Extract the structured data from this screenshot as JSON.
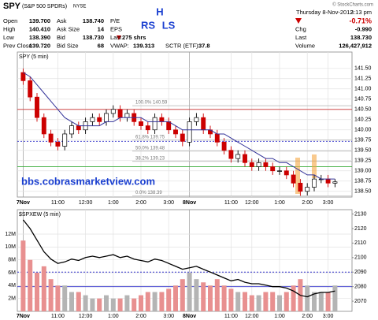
{
  "header": {
    "symbol": "SPY",
    "name": "(S&P 500 SPDRs)",
    "exchange": "NYSE",
    "credit": "© StockCharts.com",
    "date": "Thursday 8-Nov-2012",
    "time": "3:13 pm",
    "quote": [
      [
        "Open",
        "139.700"
      ],
      [
        "High",
        "140.410"
      ],
      [
        "Low",
        "138.390"
      ],
      [
        "Prev Close",
        "139.720"
      ]
    ],
    "book": [
      [
        "Ask",
        "138.740"
      ],
      [
        "Ask Size",
        "14"
      ],
      [
        "Bid",
        "138.730"
      ],
      [
        "Bid Size",
        "68"
      ]
    ],
    "pe": "P/E",
    "eps": "EPS",
    "last": [
      "Last",
      "275 shrs"
    ],
    "vwap": [
      "VWAP:",
      "139.313"
    ],
    "sctr": [
      "SCTR (ETF):",
      "37.8"
    ],
    "notes": [
      "H",
      "RS",
      "LS"
    ],
    "change": "-0.71%",
    "summary": [
      [
        "Chg",
        "-0.990"
      ],
      [
        "Last",
        "138.730"
      ],
      [
        "Volume",
        "126,427,912"
      ]
    ]
  },
  "chart_data": [
    {
      "type": "candlestick",
      "title": "SPY (5 min)",
      "categories": [
        "7Nov",
        null,
        null,
        null,
        null,
        "11:00",
        null,
        null,
        null,
        "12:00",
        null,
        null,
        null,
        "1:00",
        null,
        null,
        null,
        "2:00",
        null,
        null,
        null,
        "3:00",
        null,
        null,
        "8Nov",
        null,
        null,
        null,
        null,
        null,
        "11:00",
        null,
        null,
        "12:00",
        null,
        null,
        null,
        "1:00",
        null,
        null,
        null,
        "2:00",
        null,
        null,
        "3:00",
        null
      ],
      "open": [
        141.4,
        141.2,
        140.8,
        140.3,
        139.9,
        139.7,
        139.6,
        139.9,
        140.1,
        140.0,
        140.2,
        140.3,
        140.2,
        140.4,
        140.5,
        140.3,
        140.4,
        140.2,
        140.1,
        140.0,
        140.3,
        140.2,
        140.0,
        139.9,
        139.7,
        140.2,
        140.3,
        140.0,
        139.9,
        139.7,
        139.5,
        139.3,
        139.4,
        139.2,
        139.1,
        139.2,
        139.1,
        139.0,
        139.0,
        138.9,
        138.7,
        138.5,
        138.6,
        138.8,
        138.8,
        138.7
      ],
      "high": [
        141.5,
        141.3,
        140.9,
        140.4,
        140.0,
        139.8,
        140.0,
        140.2,
        140.2,
        140.3,
        140.4,
        140.4,
        140.5,
        140.6,
        140.6,
        140.5,
        140.5,
        140.3,
        140.2,
        140.4,
        140.4,
        140.3,
        140.1,
        140.0,
        140.3,
        140.41,
        140.4,
        140.1,
        140.0,
        139.8,
        139.6,
        139.5,
        139.5,
        139.3,
        139.3,
        139.3,
        139.2,
        139.1,
        139.1,
        139.0,
        138.8,
        138.7,
        138.9,
        138.9,
        138.9,
        138.8
      ],
      "low": [
        141.1,
        140.7,
        140.2,
        139.8,
        139.6,
        139.5,
        139.5,
        139.8,
        139.9,
        139.9,
        140.1,
        140.1,
        140.1,
        140.3,
        140.2,
        140.2,
        140.1,
        140.0,
        139.9,
        139.9,
        140.1,
        139.9,
        139.8,
        139.6,
        139.6,
        140.1,
        139.9,
        139.8,
        139.6,
        139.4,
        139.2,
        139.2,
        139.1,
        139.0,
        139.0,
        139.0,
        138.9,
        138.9,
        138.8,
        138.6,
        138.39,
        138.4,
        138.5,
        138.7,
        138.6,
        138.6
      ],
      "close": [
        141.2,
        140.8,
        140.3,
        139.9,
        139.7,
        139.6,
        139.9,
        140.1,
        140.0,
        140.2,
        140.3,
        140.2,
        140.4,
        140.5,
        140.3,
        140.4,
        140.2,
        140.1,
        140.0,
        140.3,
        140.2,
        140.0,
        139.9,
        139.72,
        140.2,
        140.3,
        140.0,
        139.9,
        139.7,
        139.5,
        139.3,
        139.4,
        139.2,
        139.1,
        139.2,
        139.1,
        139.0,
        139.0,
        138.9,
        138.7,
        138.5,
        138.6,
        138.8,
        138.8,
        138.7,
        138.73
      ],
      "up_color": "#ffffff",
      "down_color": "#cc0000",
      "ma": {
        "color": "#333399",
        "values": [
          141.4,
          141.3,
          141.1,
          140.9,
          140.7,
          140.5,
          140.3,
          140.2,
          140.1,
          140.1,
          140.1,
          140.1,
          140.2,
          140.2,
          140.3,
          140.3,
          140.3,
          140.3,
          140.2,
          140.2,
          140.2,
          140.2,
          140.1,
          140.0,
          140.0,
          140.0,
          140.0,
          140.0,
          139.9,
          139.9,
          139.8,
          139.7,
          139.6,
          139.5,
          139.4,
          139.3,
          139.3,
          139.2,
          139.2,
          139.1,
          139.0,
          138.9,
          138.9,
          138.8,
          138.8,
          138.8
        ]
      },
      "ylim": [
        138.36,
        141.9
      ],
      "yticks": [
        {
          "value": 138.5,
          "label": "138.50"
        },
        {
          "value": 138.75,
          "label": "138.75"
        },
        {
          "value": 139,
          "label": "139.00"
        },
        {
          "value": 139.25,
          "label": "139.25"
        },
        {
          "value": 139.5,
          "label": "139.50"
        },
        {
          "value": 139.75,
          "label": "139.75"
        },
        {
          "value": 140,
          "label": "140.00"
        },
        {
          "value": 140.25,
          "label": "140.25"
        },
        {
          "value": 140.5,
          "label": "140.50"
        },
        {
          "value": 140.75,
          "label": "140.75"
        },
        {
          "value": 141,
          "label": "141.00"
        },
        {
          "value": 141.25,
          "label": "141.25"
        },
        {
          "value": 141.5,
          "label": "141.50"
        }
      ],
      "grid": true,
      "levels": [
        {
          "value": 140.5,
          "color": "#cc3333"
        },
        {
          "value": 139.1,
          "color": "#33aa33"
        },
        {
          "value": 139.72,
          "color": "#3333cc",
          "dash": true
        }
      ],
      "fib": [
        {
          "label": "100.0% 140.59",
          "value": 140.59
        },
        {
          "label": "61.8% 139.75",
          "value": 139.75
        },
        {
          "label": "50.0% 139.48",
          "value": 139.48
        },
        {
          "label": "38.2% 139.23",
          "value": 139.23
        },
        {
          "label": "0.0% 138.39",
          "value": 138.39
        }
      ],
      "annotation": "bbs.cobrasmarketview.com"
    },
    {
      "type": "bar",
      "title": "$SPXEW (5 min)",
      "categories": [
        "7Nov",
        null,
        null,
        null,
        null,
        "11:00",
        null,
        null,
        null,
        "12:00",
        null,
        null,
        null,
        "1:00",
        null,
        null,
        null,
        "2:00",
        null,
        null,
        null,
        "3:00",
        null,
        null,
        "8Nov",
        null,
        null,
        null,
        null,
        null,
        "11:00",
        null,
        null,
        "12:00",
        null,
        null,
        null,
        "1:00",
        null,
        null,
        null,
        "2:00",
        null,
        null,
        "3:00",
        null
      ],
      "values": [
        11000000,
        8000000,
        6000000,
        7000000,
        5000000,
        4000000,
        4000000,
        3000000,
        3000000,
        2500000,
        2000000,
        2000000,
        2500000,
        2000000,
        2000000,
        2500000,
        2000000,
        2500000,
        3000000,
        3000000,
        3000000,
        3500000,
        4000000,
        5000000,
        6000000,
        5000000,
        4500000,
        4000000,
        5000000,
        4000000,
        3500000,
        3000000,
        3000000,
        2500000,
        2500000,
        3000000,
        3000000,
        2500000,
        3000000,
        4000000,
        5000000,
        4000000,
        3000000,
        3000000,
        3000000,
        4000000
      ],
      "color": "#b4b4b4",
      "down_color": "#e89090",
      "line": {
        "axis": "y2",
        "color": "#000000",
        "values": [
          2126,
          2120,
          2112,
          2104,
          2099,
          2096,
          2097,
          2099,
          2098,
          2100,
          2101,
          2100,
          2101,
          2102,
          2100,
          2101,
          2099,
          2098,
          2097,
          2099,
          2098,
          2096,
          2094,
          2092,
          2093,
          2094,
          2092,
          2090,
          2088,
          2086,
          2084,
          2085,
          2083,
          2082,
          2082,
          2081,
          2080,
          2080,
          2079,
          2077,
          2074,
          2073,
          2075,
          2076,
          2076,
          2077
        ]
      },
      "ylim": [
        0,
        15800000
      ],
      "yticks": [
        {
          "value": 2000000,
          "label": "2M"
        },
        {
          "value": 4000000,
          "label": "4M"
        },
        {
          "value": 6000000,
          "label": "6M"
        },
        {
          "value": 8000000,
          "label": "8M"
        },
        {
          "value": 10000000,
          "label": "10M"
        },
        {
          "value": 12000000,
          "label": "12M"
        }
      ],
      "y2lim": [
        2063,
        2133
      ],
      "y2ticks": [
        2070,
        2080,
        2090,
        2100,
        2110,
        2120,
        2130
      ],
      "grid": true,
      "levels": [
        {
          "value": 2080,
          "axis": "y2",
          "color": "#3333cc"
        },
        {
          "value": 2090,
          "axis": "y2",
          "color": "#3333cc",
          "dash": true
        }
      ]
    }
  ]
}
